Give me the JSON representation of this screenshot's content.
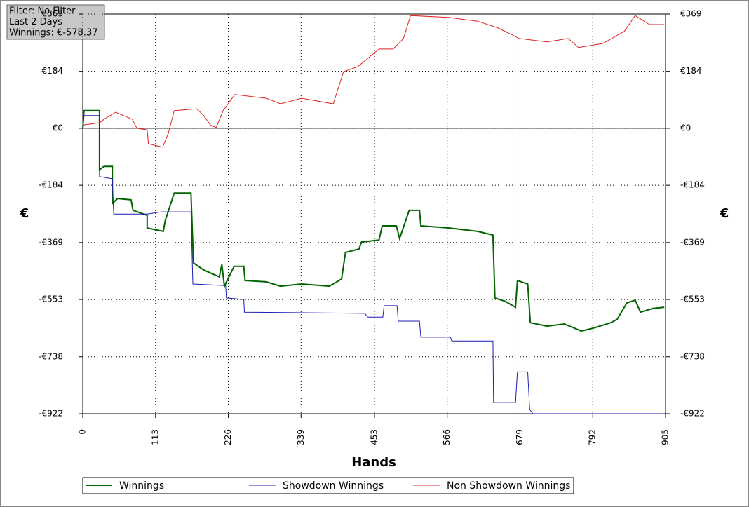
{
  "chart_data": {
    "type": "line",
    "annotations": [
      "Filter: No Filter",
      "Last  2 Days",
      "Winnings: €-578.37"
    ],
    "x_label": "Hands",
    "y_label": "€",
    "y2_label": "€",
    "xlim": [
      0,
      905
    ],
    "xticks": [
      0,
      113,
      226,
      339,
      453,
      566,
      679,
      792,
      905
    ],
    "ylim": [
      -922,
      369
    ],
    "yticks": [
      {
        "value": -922,
        "label": "-€922"
      },
      {
        "value": -738,
        "label": "-€738"
      },
      {
        "value": -553,
        "label": "-€553"
      },
      {
        "value": -369,
        "label": "-€369"
      },
      {
        "value": -184,
        "label": "-€184"
      },
      {
        "value": 0,
        "label": "€0"
      },
      {
        "value": 184,
        "label": "€184"
      },
      {
        "value": 369,
        "label": "€369"
      }
    ],
    "grid": true,
    "series": [
      {
        "name": "Winnings",
        "color": "#006400",
        "x": [
          0,
          2,
          26,
          26,
          33,
          46,
          46,
          54,
          75,
          78,
          100,
          100,
          125,
          128,
          142,
          168,
          172,
          188,
          212,
          216,
          220,
          235,
          250,
          252,
          285,
          307,
          340,
          383,
          402,
          408,
          429,
          433,
          460,
          465,
          487,
          492,
          507,
          523,
          525,
          569,
          613,
          637,
          640,
          656,
          672,
          675,
          691,
          695,
          721,
          748,
          774,
          792,
          820,
          830,
          845,
          858,
          866,
          885,
          903
        ],
        "values": [
          0,
          57,
          57,
          -134,
          -123,
          -123,
          -243,
          -227,
          -231,
          -265,
          -281,
          -322,
          -333,
          -299,
          -209,
          -209,
          -435,
          -458,
          -480,
          -440,
          -510,
          -446,
          -446,
          -492,
          -496,
          -510,
          -503,
          -510,
          -487,
          -401,
          -390,
          -367,
          -361,
          -315,
          -315,
          -356,
          -265,
          -265,
          -315,
          -322,
          -333,
          -345,
          -548,
          -559,
          -578,
          -492,
          -503,
          -628,
          -639,
          -632,
          -655,
          -646,
          -628,
          -617,
          -564,
          -555,
          -594,
          -582,
          -578
        ]
      },
      {
        "name": "Showdown Winnings",
        "color": "#1c1cb4",
        "x": [
          0,
          2,
          26,
          26,
          46,
          48,
          100,
          122,
          168,
          171,
          222,
          223,
          250,
          251,
          438,
          442,
          466,
          468,
          488,
          490,
          523,
          525,
          571,
          573,
          637,
          638,
          672,
          675,
          691,
          694,
          699,
          903
        ],
        "values": [
          0,
          41,
          41,
          -156,
          -163,
          -277,
          -277,
          -270,
          -270,
          -503,
          -508,
          -548,
          -553,
          -594,
          -598,
          -610,
          -610,
          -573,
          -573,
          -623,
          -623,
          -675,
          -675,
          -687,
          -687,
          -886,
          -886,
          -787,
          -787,
          -908,
          -922,
          -922
        ]
      },
      {
        "name": "Non Showdown Winnings",
        "color": "#e02020",
        "x": [
          0,
          2,
          26,
          33,
          51,
          77,
          84,
          100,
          102,
          124,
          133,
          142,
          177,
          188,
          198,
          207,
          218,
          236,
          285,
          307,
          340,
          389,
          405,
          427,
          460,
          482,
          498,
          509,
          569,
          613,
          645,
          678,
          721,
          754,
          770,
          808,
          841,
          858,
          880,
          903
        ],
        "values": [
          0,
          11,
          18,
          29,
          52,
          29,
          0,
          -5,
          -50,
          -61,
          -16,
          57,
          63,
          41,
          11,
          2,
          57,
          109,
          97,
          79,
          97,
          79,
          183,
          199,
          256,
          256,
          290,
          364,
          358,
          346,
          324,
          290,
          279,
          290,
          261,
          274,
          313,
          364,
          335,
          335
        ]
      }
    ]
  }
}
